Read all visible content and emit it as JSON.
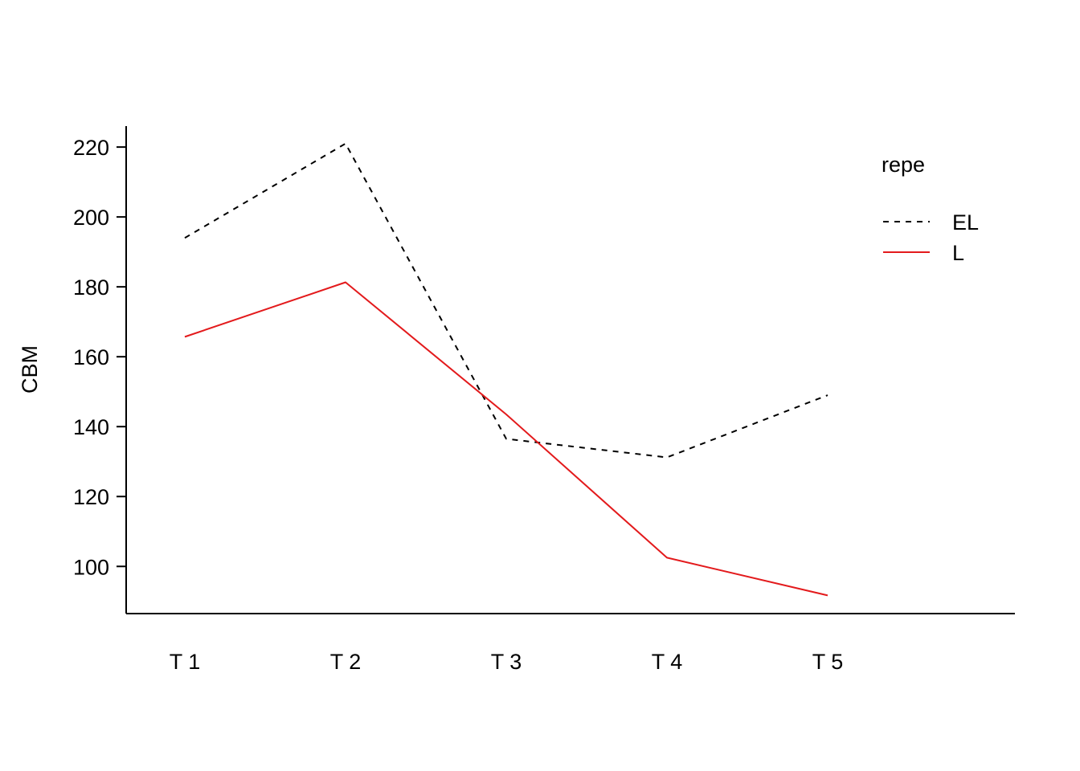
{
  "chart_data": {
    "type": "line",
    "title": "",
    "xlabel": "",
    "ylabel": "CBM",
    "categories": [
      "T 1",
      "T 2",
      "T 3",
      "T 4",
      "T 5"
    ],
    "ylim": [
      86.5,
      226
    ],
    "yticks": [
      100,
      120,
      140,
      160,
      180,
      200,
      220
    ],
    "grid": false,
    "legend": {
      "title": "repe",
      "position": "top-right"
    },
    "series": [
      {
        "name": "EL",
        "values": [
          194,
          221,
          136.5,
          131.2,
          149
        ],
        "color": "#000000",
        "style": "dashed"
      },
      {
        "name": "L",
        "values": [
          165.7,
          181.3,
          143.5,
          102.5,
          91.7
        ],
        "color": "#e31a1c",
        "style": "solid"
      }
    ]
  }
}
